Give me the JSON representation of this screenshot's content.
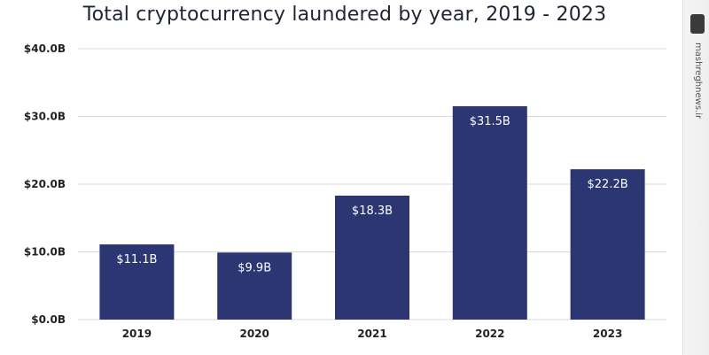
{
  "colors": {
    "bar": "#2b3673",
    "grid": "#d9d9d9",
    "text": "#222222"
  },
  "watermark": {
    "text": "mashreghnews.ir"
  },
  "chart_data": {
    "type": "bar",
    "title": "Total cryptocurrency laundered by year, 2019 - 2023",
    "xlabel": "",
    "ylabel": "",
    "categories": [
      "2019",
      "2020",
      "2021",
      "2022",
      "2023"
    ],
    "values": [
      11.1,
      9.9,
      18.3,
      31.5,
      22.2
    ],
    "data_labels": [
      "$11.1B",
      "$9.9B",
      "$18.3B",
      "$31.5B",
      "$22.2B"
    ],
    "ylim": [
      0,
      40
    ],
    "yticks": [
      0,
      10,
      20,
      30,
      40
    ],
    "ytick_labels": [
      "$0.0B",
      "$10.0B",
      "$20.0B",
      "$30.0B",
      "$40.0B"
    ],
    "grid": true,
    "legend": "none"
  }
}
